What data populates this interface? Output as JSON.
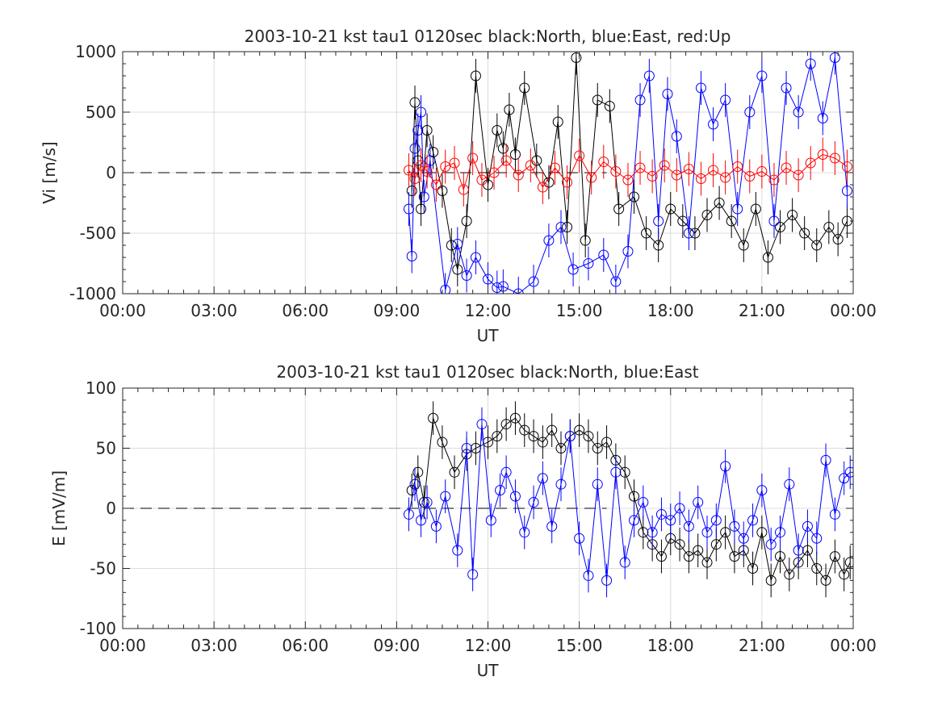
{
  "chart_data": [
    {
      "type": "scatter",
      "title": "2003-10-21 kst tau1 0120sec black:North, blue:East, red:Up",
      "xlabel": "UT",
      "ylabel": "Vi [m/s]",
      "xlim_hours": [
        0,
        24
      ],
      "ylim": [
        -1000,
        1000
      ],
      "x_tick_labels": [
        "00:00",
        "03:00",
        "06:00",
        "09:00",
        "12:00",
        "15:00",
        "18:00",
        "21:00",
        "00:00"
      ],
      "y_tick_labels": [
        "-1000",
        "-500",
        "0",
        "500",
        "1000"
      ],
      "y_ticks": [
        -1000,
        -500,
        0,
        500,
        1000
      ],
      "grid": true,
      "zero_line": "dashed",
      "series": [
        {
          "color": "#000000",
          "marker": "circle",
          "line": true,
          "errorbars": true,
          "x_hours": [
            9.5,
            9.6,
            9.7,
            9.8,
            10.0,
            10.2,
            10.5,
            10.8,
            11.0,
            11.3,
            11.6,
            12.0,
            12.3,
            12.5,
            12.7,
            12.9,
            13.2,
            13.6,
            14.0,
            14.3,
            14.6,
            14.9,
            15.2,
            15.6,
            16.0,
            16.3,
            16.8,
            17.2,
            17.6,
            18.0,
            18.4,
            18.8,
            19.2,
            19.6,
            20.0,
            20.4,
            20.8,
            21.2,
            21.6,
            22.0,
            22.4,
            22.8,
            23.2,
            23.5,
            23.8
          ],
          "values": [
            -150,
            580,
            100,
            -300,
            350,
            170,
            -150,
            -600,
            -800,
            -400,
            800,
            -100,
            350,
            200,
            520,
            150,
            700,
            100,
            -80,
            420,
            -450,
            950,
            -560,
            600,
            550,
            -300,
            -200,
            -500,
            -600,
            -300,
            -400,
            -500,
            -350,
            -250,
            -400,
            -600,
            -300,
            -700,
            -450,
            -350,
            -500,
            -600,
            -450,
            -550,
            -400
          ]
        },
        {
          "color": "#0000ff",
          "marker": "circle",
          "line": true,
          "errorbars": true,
          "x_hours": [
            9.4,
            9.5,
            9.6,
            9.7,
            9.8,
            9.9,
            10.1,
            10.6,
            11.0,
            11.3,
            11.6,
            12.0,
            12.3,
            12.5,
            13.0,
            13.5,
            14.0,
            14.4,
            14.8,
            15.3,
            15.8,
            16.2,
            16.6,
            17.0,
            17.3,
            17.6,
            17.9,
            18.2,
            18.6,
            19.0,
            19.4,
            19.8,
            20.2,
            20.6,
            21.0,
            21.4,
            21.8,
            22.2,
            22.6,
            23.0,
            23.4,
            23.8
          ],
          "values": [
            -300,
            -690,
            200,
            350,
            500,
            -200,
            100,
            -970,
            -590,
            -850,
            -700,
            -880,
            -950,
            -940,
            -1000,
            -900,
            -560,
            -450,
            -800,
            -750,
            -680,
            -900,
            -650,
            600,
            800,
            -400,
            650,
            300,
            -500,
            700,
            400,
            600,
            -300,
            500,
            800,
            -400,
            700,
            500,
            900,
            450,
            950,
            -150
          ]
        },
        {
          "color": "#ff0000",
          "marker": "circle",
          "line": true,
          "errorbars": true,
          "x_hours": [
            9.4,
            9.6,
            9.8,
            10.0,
            10.3,
            10.6,
            10.9,
            11.2,
            11.5,
            11.8,
            12.2,
            12.6,
            13.0,
            13.4,
            13.8,
            14.2,
            14.6,
            15.0,
            15.4,
            15.8,
            16.2,
            16.6,
            17.0,
            17.4,
            17.8,
            18.2,
            18.6,
            19.0,
            19.4,
            19.8,
            20.2,
            20.6,
            21.0,
            21.4,
            21.8,
            22.2,
            22.6,
            23.0,
            23.4,
            23.8
          ],
          "values": [
            20,
            -50,
            60,
            10,
            -100,
            50,
            80,
            -140,
            120,
            -60,
            0,
            100,
            -20,
            60,
            -120,
            40,
            -80,
            140,
            -40,
            90,
            10,
            -60,
            40,
            -30,
            60,
            -20,
            30,
            -50,
            20,
            -40,
            50,
            -30,
            10,
            -60,
            40,
            -20,
            80,
            150,
            120,
            50
          ]
        }
      ]
    },
    {
      "type": "scatter",
      "title": "2003-10-21 kst tau1 0120sec black:North, blue:East",
      "xlabel": "UT",
      "ylabel": "E [mV/m]",
      "xlim_hours": [
        0,
        24
      ],
      "ylim": [
        -100,
        100
      ],
      "x_tick_labels": [
        "00:00",
        "03:00",
        "06:00",
        "09:00",
        "12:00",
        "15:00",
        "18:00",
        "21:00",
        "00:00"
      ],
      "y_tick_labels": [
        "-100",
        "-50",
        "0",
        "50",
        "100"
      ],
      "y_ticks": [
        -100,
        -50,
        0,
        50,
        100
      ],
      "grid": true,
      "zero_line": "dashed",
      "series": [
        {
          "color": "#000000",
          "marker": "circle",
          "line": true,
          "errorbars": true,
          "x_hours": [
            9.5,
            9.7,
            9.9,
            10.2,
            10.5,
            10.9,
            11.3,
            11.6,
            12.0,
            12.3,
            12.6,
            12.9,
            13.2,
            13.5,
            13.8,
            14.1,
            14.4,
            14.7,
            15.0,
            15.3,
            15.6,
            15.9,
            16.2,
            16.5,
            16.8,
            17.1,
            17.4,
            17.7,
            18.0,
            18.3,
            18.6,
            18.9,
            19.2,
            19.5,
            19.8,
            20.1,
            20.4,
            20.7,
            21.0,
            21.3,
            21.6,
            21.9,
            22.2,
            22.5,
            22.8,
            23.1,
            23.4,
            23.7,
            23.9
          ],
          "values": [
            15,
            30,
            5,
            75,
            55,
            30,
            45,
            50,
            55,
            60,
            70,
            75,
            65,
            60,
            55,
            65,
            50,
            60,
            65,
            60,
            50,
            55,
            40,
            30,
            10,
            -20,
            -30,
            -40,
            -25,
            -30,
            -40,
            -35,
            -45,
            -30,
            -20,
            -40,
            -35,
            -50,
            -20,
            -60,
            -40,
            -55,
            -45,
            -35,
            -50,
            -60,
            -40,
            -55,
            -45
          ]
        },
        {
          "color": "#0000ff",
          "marker": "circle",
          "line": true,
          "errorbars": true,
          "x_hours": [
            9.4,
            9.6,
            9.8,
            10.0,
            10.3,
            10.6,
            11.0,
            11.3,
            11.5,
            11.8,
            12.1,
            12.4,
            12.6,
            12.9,
            13.2,
            13.5,
            13.8,
            14.1,
            14.4,
            14.7,
            15.0,
            15.3,
            15.6,
            15.9,
            16.2,
            16.5,
            16.8,
            17.1,
            17.4,
            17.7,
            18.0,
            18.3,
            18.6,
            18.9,
            19.2,
            19.5,
            19.8,
            20.1,
            20.4,
            20.7,
            21.0,
            21.3,
            21.6,
            21.9,
            22.2,
            22.5,
            22.8,
            23.1,
            23.4,
            23.7,
            23.9
          ],
          "values": [
            -5,
            20,
            -10,
            5,
            -15,
            10,
            -35,
            50,
            -55,
            70,
            -10,
            15,
            30,
            10,
            -20,
            5,
            25,
            -15,
            20,
            60,
            -25,
            -56,
            20,
            -60,
            30,
            -45,
            -10,
            5,
            -20,
            -5,
            -10,
            0,
            -15,
            5,
            -20,
            -10,
            35,
            -15,
            -25,
            -10,
            15,
            -30,
            -20,
            20,
            -35,
            -15,
            -25,
            40,
            -5,
            25,
            30
          ]
        }
      ]
    }
  ]
}
